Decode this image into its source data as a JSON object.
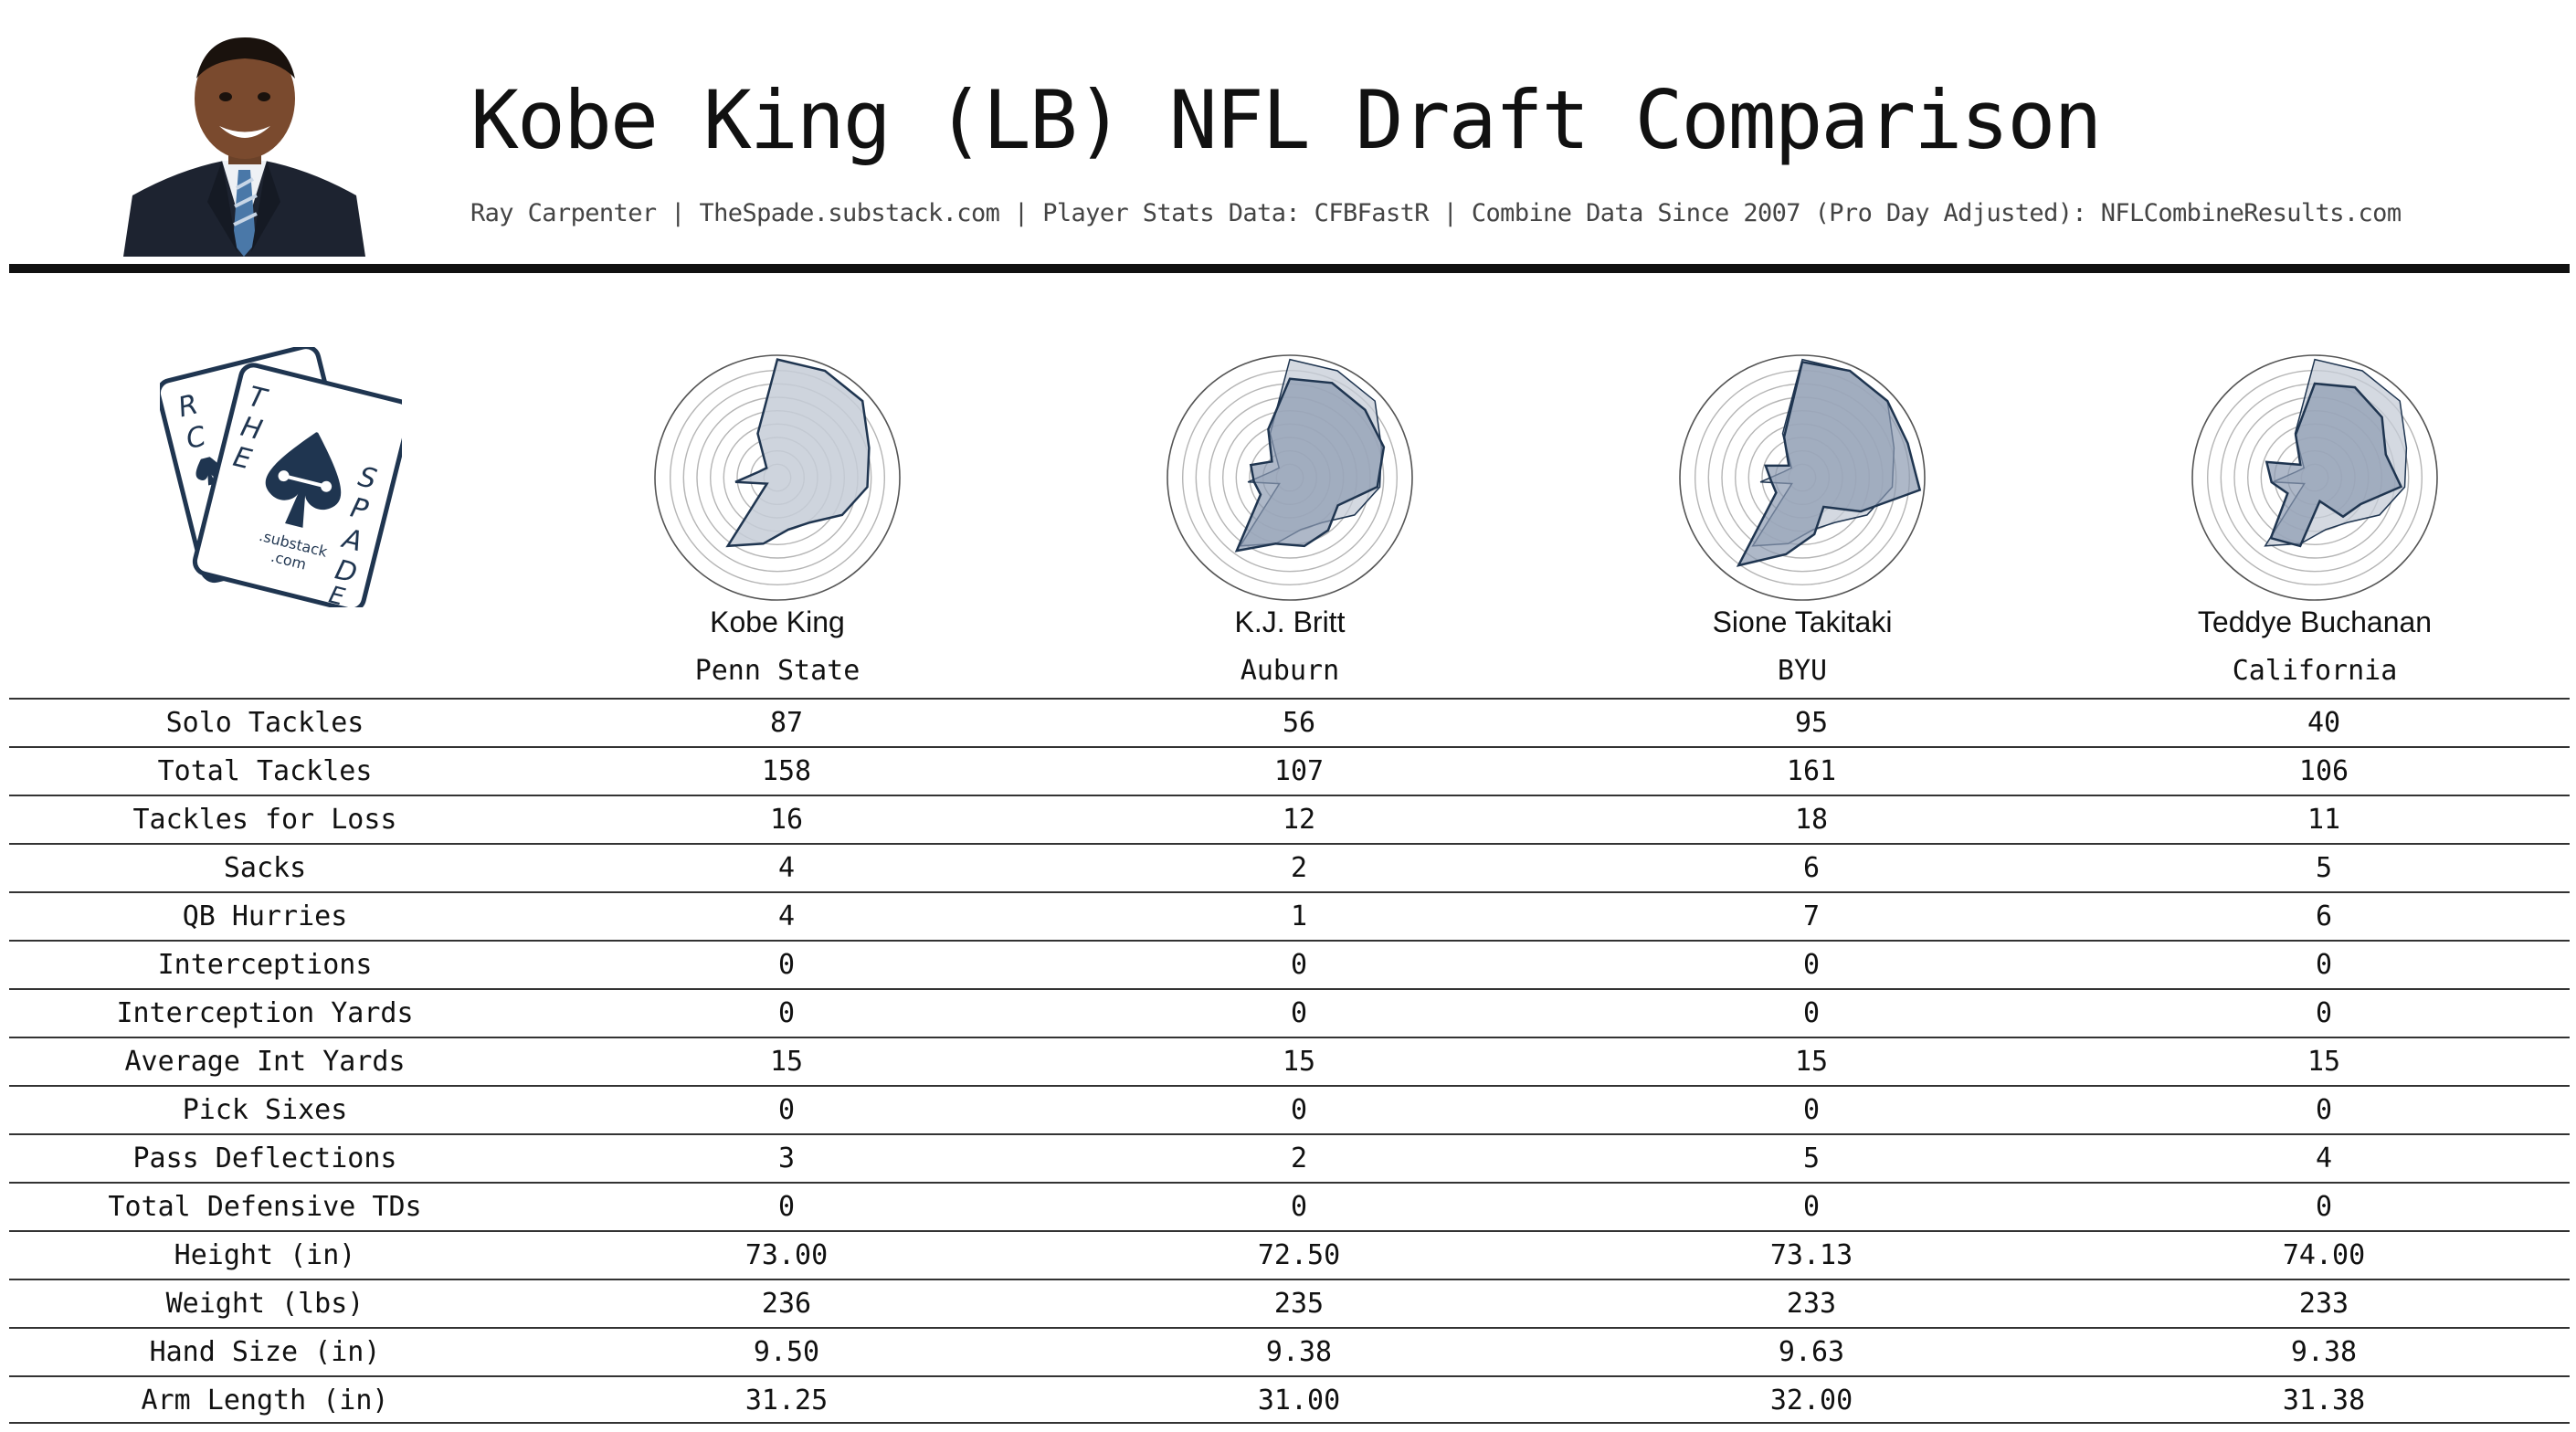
{
  "header": {
    "title": "Kobe King (LB) NFL Draft Comparison",
    "subtitle": "Ray Carpenter | TheSpade.substack.com | Player Stats Data: CFBFastR | Combine Data Since 2007 (Pro Day Adjusted): NFLCombineResults.com"
  },
  "logo": {
    "letters_left": "RCE",
    "letters_top": "THE",
    "letters_right": "SPADE",
    "sub": ".substack",
    "sub2": ".com"
  },
  "colors": {
    "radar_stroke": "#1f3550",
    "radar_fill_primary": "#c5ccd7",
    "radar_fill_compare": "#8b9ab0",
    "grid": "#b5b5b5",
    "rule": "#111111"
  },
  "chart_data": {
    "type": "radar",
    "categories": [
      "Solo Tackles",
      "Total Tackles",
      "Tackles for Loss",
      "Sacks",
      "QB Hurries",
      "Interceptions",
      "Interception Yards",
      "Average Int Yards",
      "Pick Sixes",
      "Pass Deflections",
      "Total Defensive TDs",
      "Height (in)",
      "Weight (lbs)",
      "Hand Size (in)",
      "Arm Length (in)"
    ],
    "rlim": [
      0,
      100
    ],
    "grid_rings": 8,
    "series": [
      {
        "name": "Kobe King",
        "values": [
          98,
          97,
          95,
          80,
          75,
          62,
          46,
          44,
          56,
          70,
          10,
          35,
          16,
          12,
          40
        ]
      },
      {
        "name": "K.J. Britt",
        "values": [
          82,
          86,
          84,
          82,
          73,
          46,
          54,
          58,
          56,
          75,
          28,
          30,
          34,
          20,
          44
        ]
      },
      {
        "name": "Sione Takitaki",
        "values": [
          96,
          97,
          95,
          92,
          98,
          56,
          30,
          48,
          65,
          90,
          25,
          26,
          32,
          15,
          37
        ]
      },
      {
        "name": "Teddye Buchanan",
        "values": [
          78,
          82,
          75,
          62,
          72,
          44,
          40,
          20,
          58,
          62,
          26,
          36,
          42,
          16,
          39
        ]
      }
    ]
  },
  "players": [
    {
      "name": "Kobe King",
      "school": "Penn State"
    },
    {
      "name": "K.J. Britt",
      "school": "Auburn"
    },
    {
      "name": "Sione Takitaki",
      "school": "BYU"
    },
    {
      "name": "Teddye Buchanan",
      "school": "California"
    }
  ],
  "table": {
    "rows": [
      {
        "label": "Solo Tackles",
        "values": [
          "87",
          "56",
          "95",
          "40"
        ]
      },
      {
        "label": "Total Tackles",
        "values": [
          "158",
          "107",
          "161",
          "106"
        ]
      },
      {
        "label": "Tackles for Loss",
        "values": [
          "16",
          "12",
          "18",
          "11"
        ]
      },
      {
        "label": "Sacks",
        "values": [
          "4",
          "2",
          "6",
          "5"
        ]
      },
      {
        "label": "QB Hurries",
        "values": [
          "4",
          "1",
          "7",
          "6"
        ]
      },
      {
        "label": "Interceptions",
        "values": [
          "0",
          "0",
          "0",
          "0"
        ]
      },
      {
        "label": "Interception Yards",
        "values": [
          "0",
          "0",
          "0",
          "0"
        ]
      },
      {
        "label": "Average Int Yards",
        "values": [
          "15",
          "15",
          "15",
          "15"
        ]
      },
      {
        "label": "Pick Sixes",
        "values": [
          "0",
          "0",
          "0",
          "0"
        ]
      },
      {
        "label": "Pass Deflections",
        "values": [
          "3",
          "2",
          "5",
          "4"
        ]
      },
      {
        "label": "Total Defensive TDs",
        "values": [
          "0",
          "0",
          "0",
          "0"
        ]
      },
      {
        "label": "Height (in)",
        "values": [
          "73.00",
          "72.50",
          "73.13",
          "74.00"
        ]
      },
      {
        "label": "Weight (lbs)",
        "values": [
          "236",
          "235",
          "233",
          "233"
        ]
      },
      {
        "label": "Hand Size (in)",
        "values": [
          "9.50",
          "9.38",
          "9.63",
          "9.38"
        ]
      },
      {
        "label": "Arm Length (in)",
        "values": [
          "31.25",
          "31.00",
          "32.00",
          "31.38"
        ]
      }
    ]
  }
}
